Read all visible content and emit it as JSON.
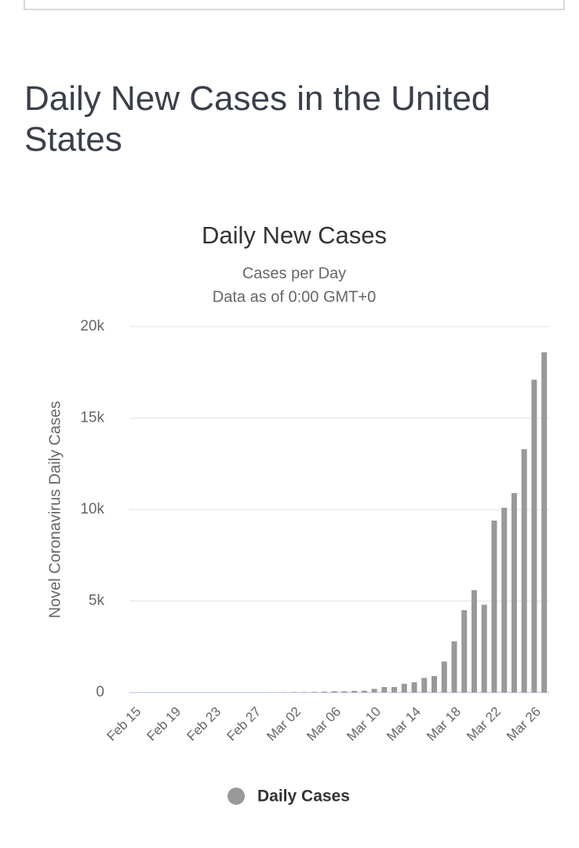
{
  "heading": "Daily New Cases in the United States",
  "chart_data": {
    "type": "bar",
    "title": "Daily New Cases",
    "subtitle": [
      "Cases per Day",
      "Data as of 0:00 GMT+0"
    ],
    "y_axis_label": "Novel Coronavirus Daily Cases",
    "categories": [
      "Feb 15",
      null,
      null,
      null,
      "Feb 19",
      null,
      null,
      null,
      "Feb 23",
      null,
      null,
      null,
      "Feb 27",
      null,
      null,
      null,
      "Mar 02",
      null,
      null,
      null,
      "Mar 06",
      null,
      null,
      null,
      "Mar 10",
      null,
      null,
      null,
      "Mar 14",
      null,
      null,
      null,
      "Mar 18",
      null,
      null,
      null,
      "Mar 22",
      null,
      null,
      null,
      "Mar 26",
      null
    ],
    "series": [
      {
        "name": "Daily Cases",
        "color": "#999999",
        "values": [
          0,
          0,
          0,
          0,
          0,
          0,
          0,
          0,
          0,
          0,
          0,
          0,
          0,
          0,
          0,
          10,
          20,
          20,
          30,
          50,
          70,
          70,
          90,
          100,
          200,
          300,
          300,
          480,
          560,
          800,
          900,
          1700,
          2800,
          4500,
          5600,
          4800,
          9400,
          10100,
          10900,
          13300,
          17100,
          18600
        ]
      }
    ],
    "ylim": [
      0,
      20000
    ],
    "yticks": [
      0,
      {
        "value": 5000,
        "label": "5k"
      },
      {
        "value": 10000,
        "label": "10k"
      },
      {
        "value": 15000,
        "label": "15k"
      },
      {
        "value": 20000,
        "label": "20k"
      }
    ],
    "grid": true
  }
}
